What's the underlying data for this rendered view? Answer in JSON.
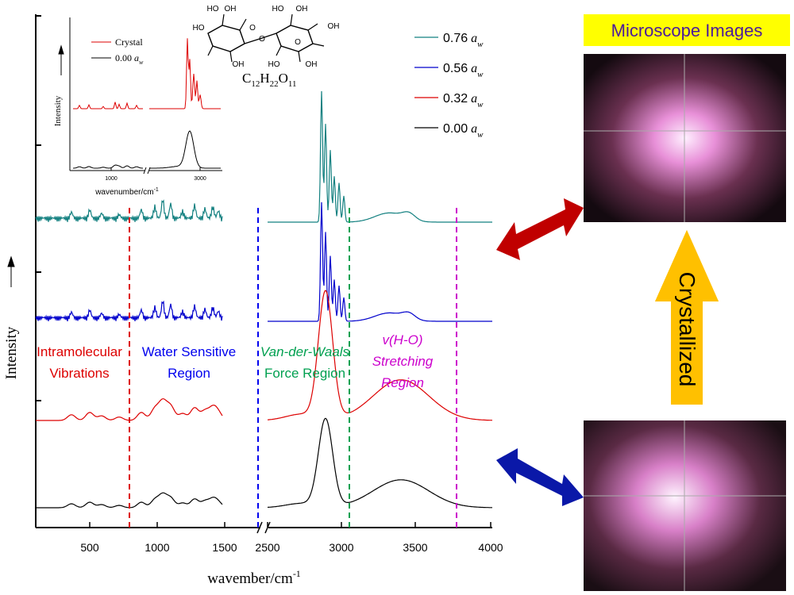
{
  "figure": {
    "y_label": "Intensity",
    "x_label": "wavember/cm",
    "x_label_sup": "-1",
    "x_ticks": [
      "500",
      "1000",
      "1500",
      "2500",
      "3000",
      "3500",
      "4000"
    ],
    "legend": [
      {
        "value": "0.76",
        "symbol": "a",
        "sub": "w"
      },
      {
        "value": "0.56",
        "symbol": "a",
        "sub": "w"
      },
      {
        "value": "0.32",
        "symbol": "a",
        "sub": "w"
      },
      {
        "value": "0.00",
        "symbol": "a",
        "sub": "w"
      }
    ],
    "regions": [
      [
        "Intramolecular",
        "Vibrations"
      ],
      [
        "Water Sensitive",
        "Region"
      ],
      [
        "Van-der-Waals",
        "Force Region"
      ],
      [
        "v(H-O)",
        "Stretching",
        "Region"
      ]
    ],
    "formula": [
      [
        "C",
        "12"
      ],
      [
        "H",
        "22"
      ],
      [
        "O",
        "11"
      ]
    ],
    "molecule_labels": [
      "HO",
      "OH",
      "HO",
      "OH",
      "O",
      "O",
      "O",
      "HO",
      "OH",
      "OH",
      "HO",
      "OH"
    ]
  },
  "inset": {
    "legend": [
      "Crystal",
      "0.00"
    ],
    "legend_symbol": "a",
    "legend_sub": "w",
    "y_label": "Intensity",
    "x_label": "wavenumber/cm",
    "x_label_sup": "-1",
    "x_ticks": [
      "1000",
      "3000"
    ]
  },
  "side": {
    "title": "Microscope Images",
    "arrow_label": "Crystallized"
  }
}
